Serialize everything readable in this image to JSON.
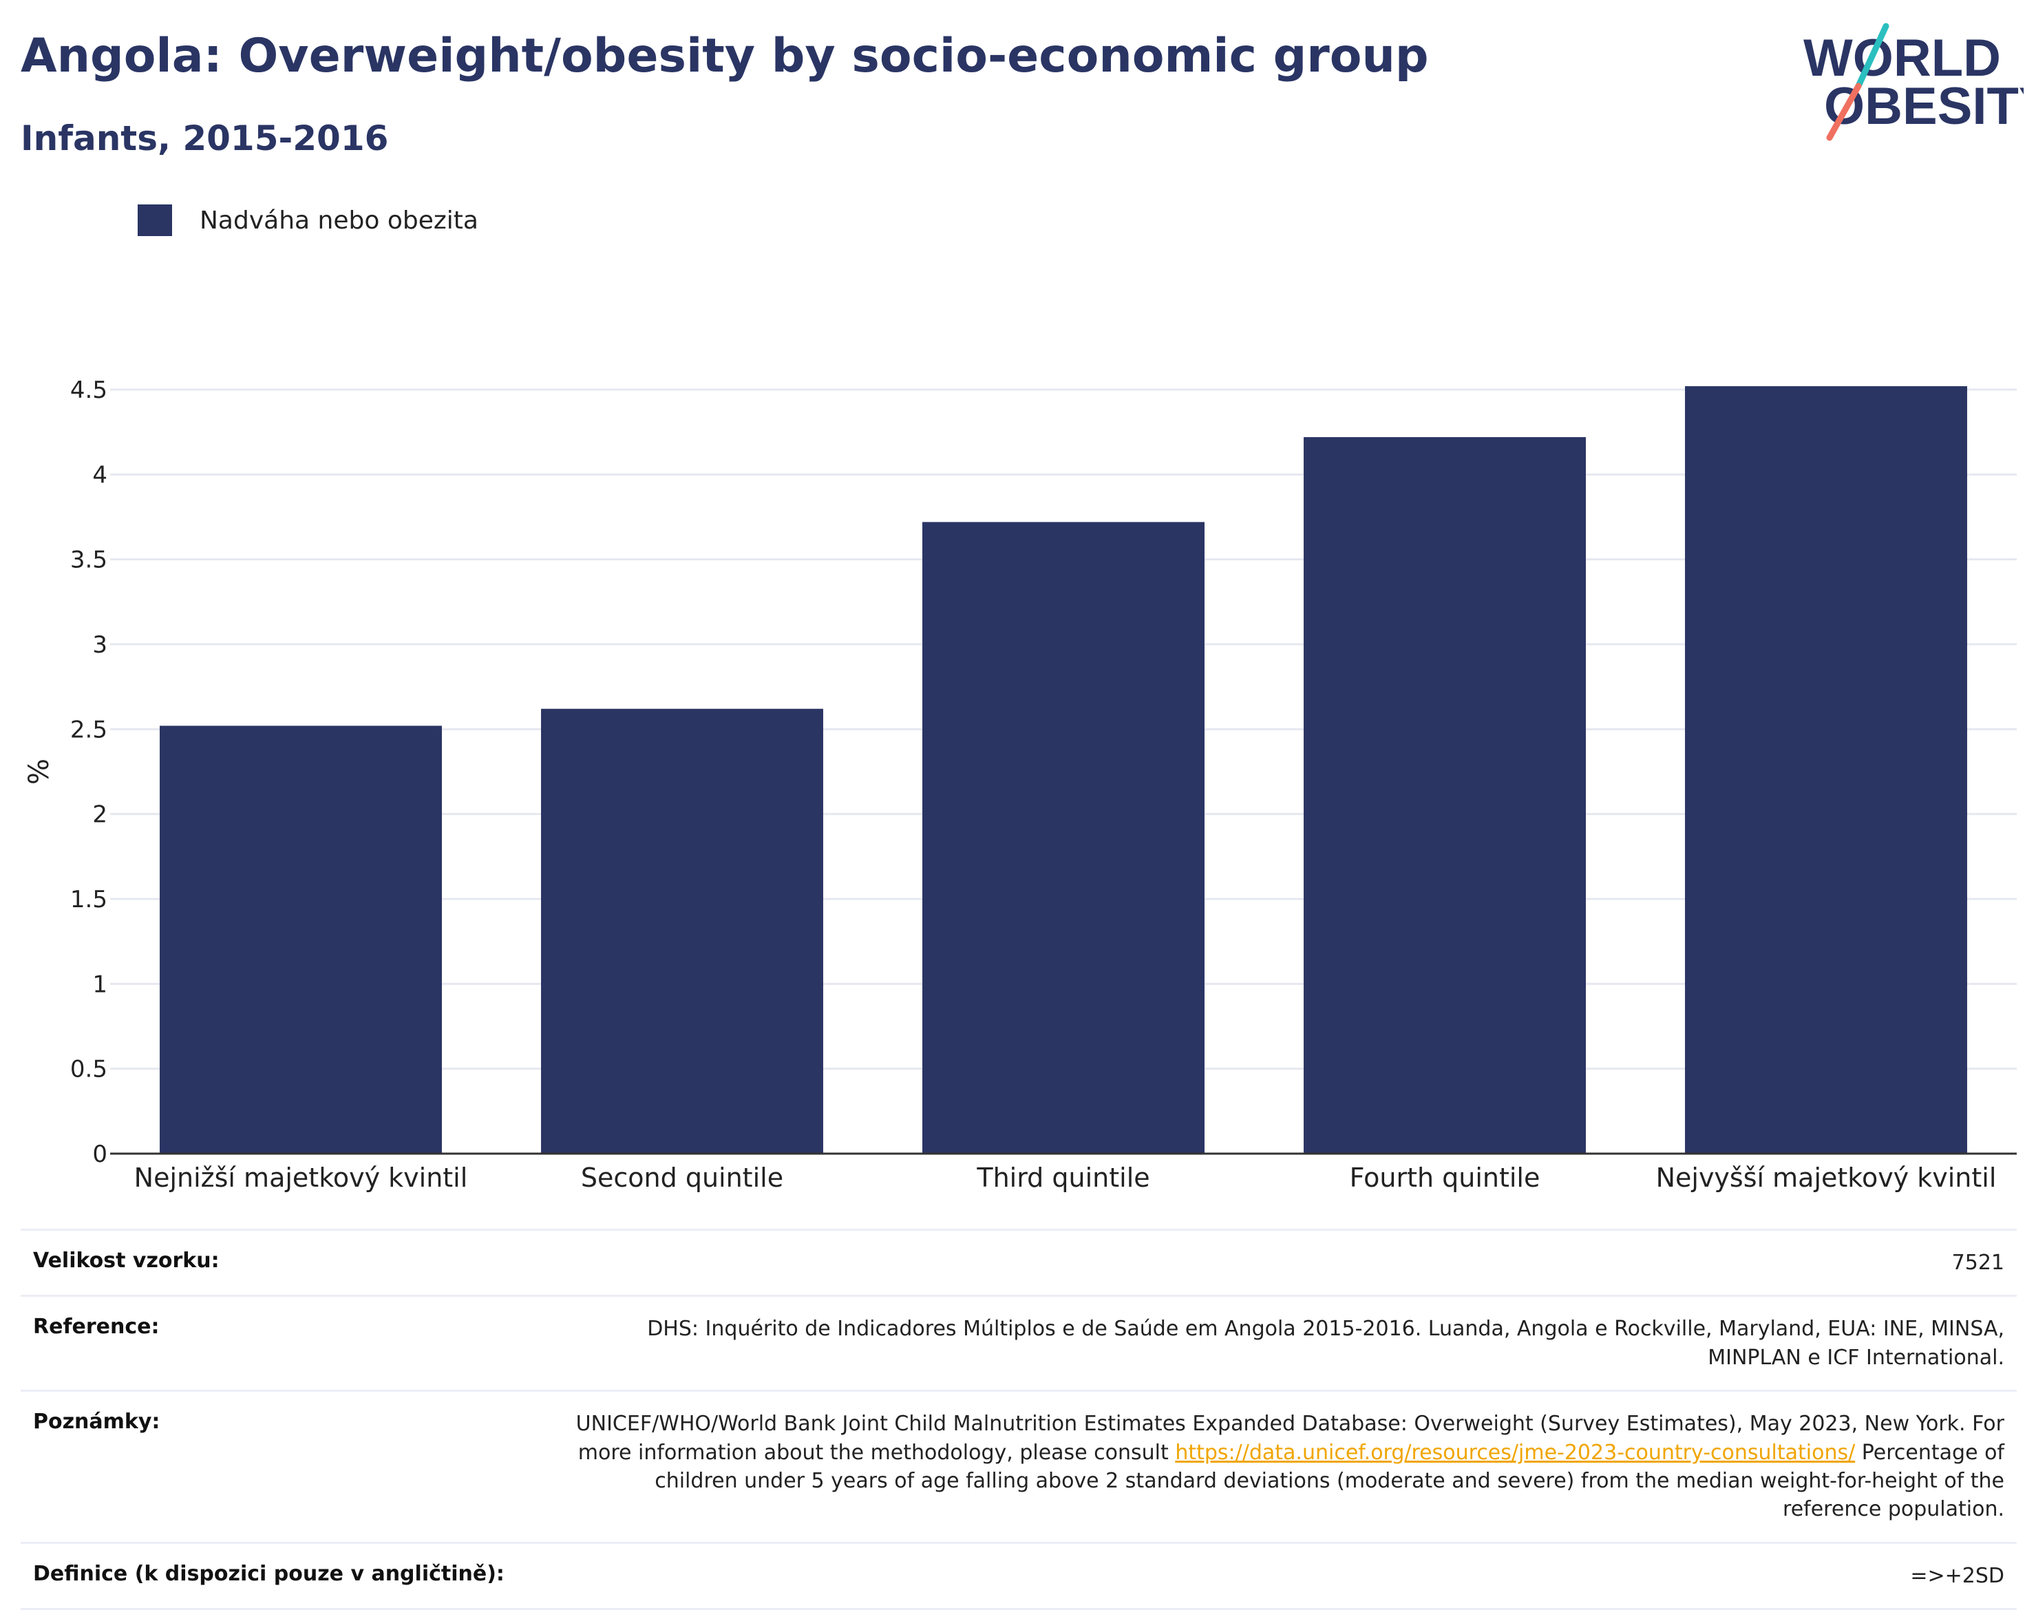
{
  "header": {
    "title": "Angola: Overweight/obesity by socio-economic group",
    "subtitle": "Infants, 2015-2016"
  },
  "logo": {
    "line1": "WORLD",
    "line2": "OBESITY",
    "colors": {
      "navy": "#2a3564",
      "teal": "#2bbfbf",
      "coral": "#f07060"
    }
  },
  "colors": {
    "bar": "#2a3564",
    "grid": "#e6e8f0",
    "axis": "#333333"
  },
  "chart_data": {
    "type": "bar",
    "categories": [
      "Nejnižší majetkový kvintil",
      "Second quintile",
      "Third quintile",
      "Fourth quintile",
      "Nejvyšší majetkový kvintil"
    ],
    "series": [
      {
        "name": "Nadváha nebo obezita",
        "values": [
          2.52,
          2.62,
          3.72,
          4.22,
          4.52
        ]
      }
    ],
    "ylabel": "%",
    "ylim": [
      0,
      4.5
    ],
    "yticks": [
      0,
      0.5,
      1,
      1.5,
      2,
      2.5,
      3,
      3.5,
      4,
      4.5
    ],
    "ytick_labels": [
      "0",
      "0.5",
      "1",
      "1.5",
      "2",
      "2.5",
      "3",
      "3.5",
      "4",
      "4.5"
    ],
    "grid": true,
    "legend": "top-left"
  },
  "footer": {
    "sample_label": "Velikost vzorku:",
    "sample_value": "7521",
    "reference_label": "Reference:",
    "reference_value": "DHS: Inquérito de Indicadores Múltiplos e de Saúde em Angola 2015-2016. Luanda, Angola e Rockville, Maryland, EUA: INE, MINSA, MINPLAN e ICF International.",
    "notes_label": "Poznámky:",
    "notes_before": "UNICEF/WHO/World Bank Joint Child Malnutrition Estimates Expanded Database: Overweight (Survey Estimates), May 2023, New York. For more information about the methodology, please consult ",
    "notes_link": "https://data.unicef.org/resources/jme-2023-country-consultations/",
    "notes_after": " Percentage of children under 5 years of age falling above 2 standard deviations (moderate and severe) from the median weight-for-height of the reference population.",
    "definition_label": "Definice (k dispozici pouze v angličtině):",
    "definition_value": "=>+2SD"
  }
}
